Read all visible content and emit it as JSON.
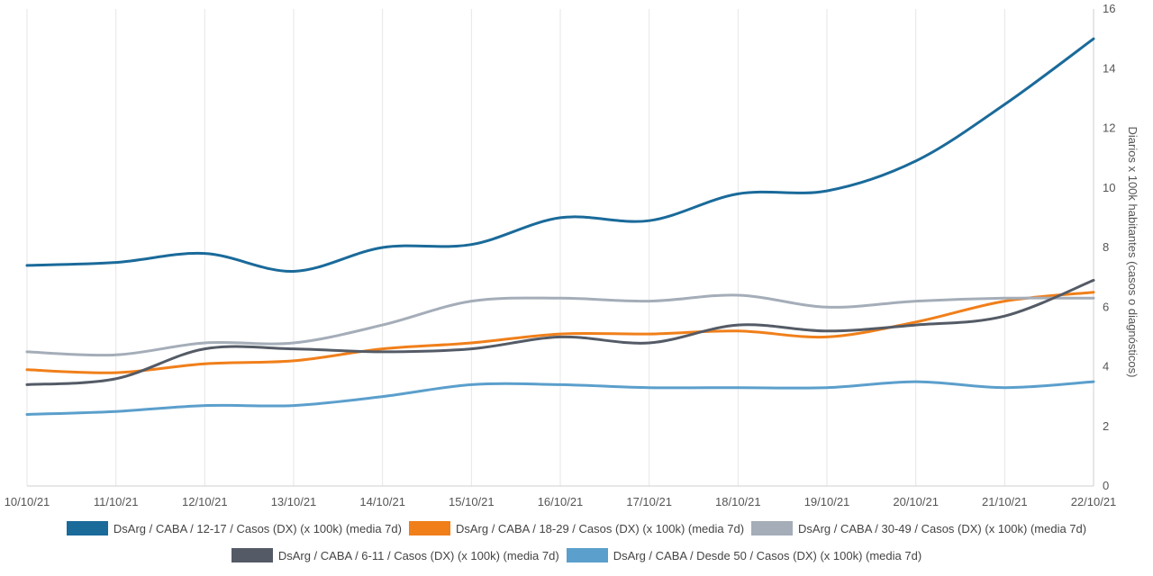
{
  "chart_data": {
    "type": "line",
    "x": [
      "10/10/21",
      "11/10/21",
      "12/10/21",
      "13/10/21",
      "14/10/21",
      "15/10/21",
      "16/10/21",
      "17/10/21",
      "18/10/21",
      "19/10/21",
      "20/10/21",
      "21/10/21",
      "22/10/21"
    ],
    "ylabel": "Diarios x 100k habitantes (casos o diagnósticos)",
    "ylim": [
      0,
      16
    ],
    "yticks": [
      "0",
      "2",
      "4",
      "6",
      "8",
      "10",
      "12",
      "14",
      "16"
    ],
    "y_axis_side": "right",
    "grid": "vertical",
    "legend_position": "bottom",
    "series": [
      {
        "name": "DsArg / CABA / 12-17 / Casos (DX) (x 100k) (media 7d)",
        "color": "#1a6a9a",
        "values": [
          7.4,
          7.5,
          7.8,
          7.2,
          8.0,
          8.1,
          9.0,
          8.9,
          9.8,
          9.9,
          10.9,
          12.8,
          15.0
        ]
      },
      {
        "name": "DsArg / CABA / 18-29 / Casos (DX) (x 100k) (media 7d)",
        "color": "#f07f1a",
        "values": [
          3.9,
          3.8,
          4.1,
          4.2,
          4.6,
          4.8,
          5.1,
          5.1,
          5.2,
          5.0,
          5.5,
          6.2,
          6.5
        ]
      },
      {
        "name": "DsArg / CABA / 30-49 / Casos (DX) (x 100k) (media 7d)",
        "color": "#a4adb8",
        "values": [
          4.5,
          4.4,
          4.8,
          4.8,
          5.4,
          6.2,
          6.3,
          6.2,
          6.4,
          6.0,
          6.2,
          6.3,
          6.3
        ]
      },
      {
        "name": "DsArg / CABA / 6-11 / Casos (DX) (x 100k) (media 7d)",
        "color": "#545b66",
        "values": [
          3.4,
          3.6,
          4.6,
          4.6,
          4.5,
          4.6,
          5.0,
          4.8,
          5.4,
          5.2,
          5.4,
          5.7,
          6.9
        ]
      },
      {
        "name": "DsArg / CABA / Desde 50 / Casos (DX) (x 100k) (media 7d)",
        "color": "#5b9fcc",
        "values": [
          2.4,
          2.5,
          2.7,
          2.7,
          3.0,
          3.4,
          3.4,
          3.3,
          3.3,
          3.3,
          3.5,
          3.3,
          3.5
        ]
      }
    ]
  }
}
